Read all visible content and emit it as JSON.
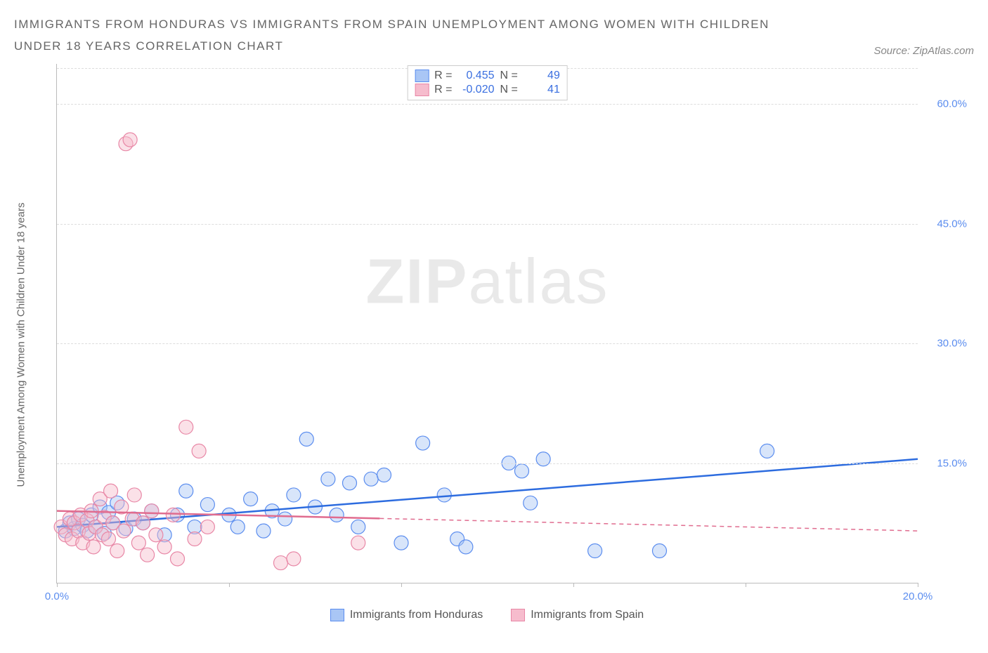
{
  "title": "IMMIGRANTS FROM HONDURAS VS IMMIGRANTS FROM SPAIN UNEMPLOYMENT AMONG WOMEN WITH CHILDREN UNDER 18 YEARS CORRELATION CHART",
  "source": "Source: ZipAtlas.com",
  "y_axis_label": "Unemployment Among Women with Children Under 18 years",
  "watermark_bold": "ZIP",
  "watermark_light": "atlas",
  "chart": {
    "type": "scatter",
    "xlim": [
      0,
      20
    ],
    "ylim": [
      0,
      65
    ],
    "x_ticks": [
      0,
      4,
      8,
      12,
      16,
      20
    ],
    "x_tick_labels": {
      "0": "0.0%",
      "20": "20.0%"
    },
    "y_ticks": [
      15,
      30,
      45,
      60
    ],
    "y_tick_labels": [
      "15.0%",
      "30.0%",
      "45.0%",
      "60.0%"
    ],
    "grid_color": "#dddddd",
    "axis_color": "#bbbbbb",
    "background_color": "#ffffff",
    "marker_radius": 10,
    "marker_opacity": 0.45,
    "line_width": 2.5,
    "series": [
      {
        "name": "Immigrants from Honduras",
        "color_fill": "#a9c6f5",
        "color_stroke": "#5b8def",
        "color_line": "#2d6cdf",
        "stats": {
          "R": "0.455",
          "N": "49"
        },
        "trend": {
          "x1": 0,
          "y1": 7.0,
          "x2": 20,
          "y2": 15.5,
          "extrapolate_from_x": 0
        },
        "points": [
          [
            0.2,
            6.5
          ],
          [
            0.3,
            7.5
          ],
          [
            0.4,
            6.8
          ],
          [
            0.5,
            8.0
          ],
          [
            0.6,
            7.2
          ],
          [
            0.7,
            6.5
          ],
          [
            0.8,
            8.5
          ],
          [
            0.9,
            7.0
          ],
          [
            1.0,
            9.5
          ],
          [
            1.1,
            6.2
          ],
          [
            1.2,
            8.8
          ],
          [
            1.3,
            7.5
          ],
          [
            1.4,
            10.0
          ],
          [
            1.6,
            6.8
          ],
          [
            1.8,
            8.0
          ],
          [
            2.0,
            7.5
          ],
          [
            2.2,
            9.0
          ],
          [
            2.5,
            6.0
          ],
          [
            2.8,
            8.5
          ],
          [
            3.0,
            11.5
          ],
          [
            3.2,
            7.0
          ],
          [
            3.5,
            9.8
          ],
          [
            4.0,
            8.5
          ],
          [
            4.2,
            7.0
          ],
          [
            4.5,
            10.5
          ],
          [
            4.8,
            6.5
          ],
          [
            5.0,
            9.0
          ],
          [
            5.3,
            8.0
          ],
          [
            5.5,
            11.0
          ],
          [
            5.8,
            18.0
          ],
          [
            6.0,
            9.5
          ],
          [
            6.3,
            13.0
          ],
          [
            6.5,
            8.5
          ],
          [
            6.8,
            12.5
          ],
          [
            7.0,
            7.0
          ],
          [
            7.3,
            13.0
          ],
          [
            7.6,
            13.5
          ],
          [
            8.0,
            5.0
          ],
          [
            8.5,
            17.5
          ],
          [
            9.0,
            11.0
          ],
          [
            9.3,
            5.5
          ],
          [
            9.5,
            4.5
          ],
          [
            10.5,
            15.0
          ],
          [
            10.8,
            14.0
          ],
          [
            11.0,
            10.0
          ],
          [
            11.3,
            15.5
          ],
          [
            12.5,
            4.0
          ],
          [
            14.0,
            4.0
          ],
          [
            16.5,
            16.5
          ]
        ]
      },
      {
        "name": "Immigrants from Spain",
        "color_fill": "#f6bccd",
        "color_stroke": "#e887a6",
        "color_line": "#e06c8f",
        "stats": {
          "R": "-0.020",
          "N": "41"
        },
        "trend": {
          "x1": 0,
          "y1": 9.0,
          "x2": 20,
          "y2": 6.5,
          "extrapolate_from_x": 7.5
        },
        "points": [
          [
            0.1,
            7.0
          ],
          [
            0.2,
            6.0
          ],
          [
            0.3,
            8.0
          ],
          [
            0.35,
            5.5
          ],
          [
            0.4,
            7.5
          ],
          [
            0.5,
            6.5
          ],
          [
            0.55,
            8.5
          ],
          [
            0.6,
            5.0
          ],
          [
            0.7,
            7.8
          ],
          [
            0.75,
            6.2
          ],
          [
            0.8,
            9.0
          ],
          [
            0.85,
            4.5
          ],
          [
            0.9,
            7.0
          ],
          [
            1.0,
            10.5
          ],
          [
            1.05,
            6.0
          ],
          [
            1.1,
            8.2
          ],
          [
            1.2,
            5.5
          ],
          [
            1.25,
            11.5
          ],
          [
            1.3,
            7.5
          ],
          [
            1.4,
            4.0
          ],
          [
            1.5,
            9.5
          ],
          [
            1.55,
            6.5
          ],
          [
            1.6,
            55.0
          ],
          [
            1.7,
            55.5
          ],
          [
            1.75,
            8.0
          ],
          [
            1.8,
            11.0
          ],
          [
            1.9,
            5.0
          ],
          [
            2.0,
            7.5
          ],
          [
            2.1,
            3.5
          ],
          [
            2.2,
            9.0
          ],
          [
            2.3,
            6.0
          ],
          [
            2.5,
            4.5
          ],
          [
            2.7,
            8.5
          ],
          [
            2.8,
            3.0
          ],
          [
            3.0,
            19.5
          ],
          [
            3.2,
            5.5
          ],
          [
            3.3,
            16.5
          ],
          [
            3.5,
            7.0
          ],
          [
            5.2,
            2.5
          ],
          [
            5.5,
            3.0
          ],
          [
            7.0,
            5.0
          ]
        ]
      }
    ]
  },
  "legend_top_labels": {
    "R": "R =",
    "N": "N ="
  },
  "legend_bottom": [
    "Immigrants from Honduras",
    "Immigrants from Spain"
  ]
}
